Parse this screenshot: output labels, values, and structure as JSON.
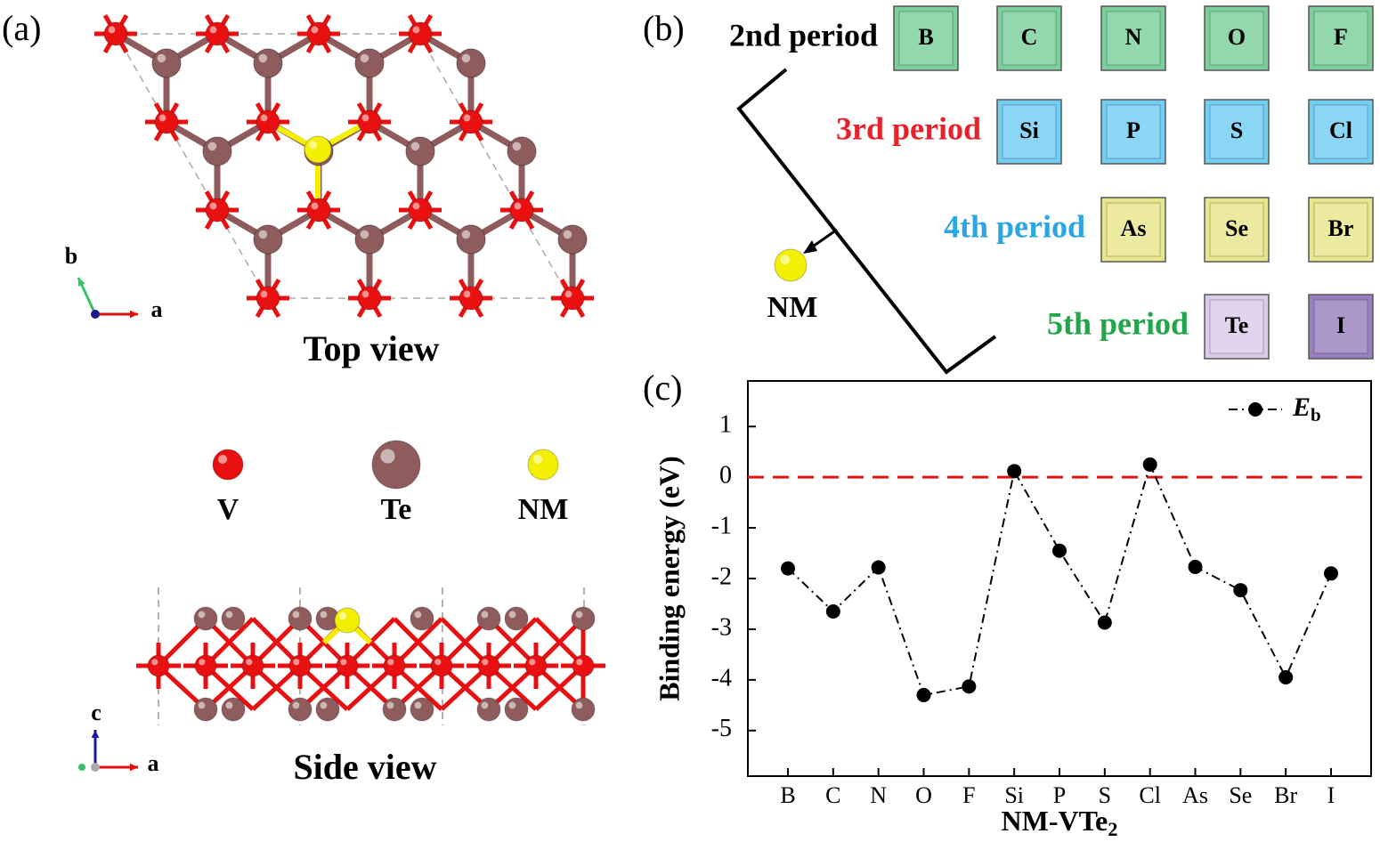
{
  "panel_labels": [
    "(a)",
    "(b)",
    "(c)"
  ],
  "structure": {
    "top_view": "Top view",
    "side_view": "Side view",
    "atoms": [
      {
        "name": "V",
        "color": "#e81010"
      },
      {
        "name": "Te",
        "color": "#8e5c5c"
      },
      {
        "name": "NM",
        "color": "#f2f000"
      }
    ],
    "top_axes": [
      "b",
      "a"
    ],
    "side_axes": [
      "c",
      "a"
    ]
  },
  "periods": [
    {
      "label": "2nd period",
      "color": "#000000",
      "elements": [
        {
          "symbol": "B",
          "color": "#7ccf9c"
        },
        {
          "symbol": "C",
          "color": "#7ccf9c"
        },
        {
          "symbol": "N",
          "color": "#7ccf9c"
        },
        {
          "symbol": "O",
          "color": "#7ccf9c"
        },
        {
          "symbol": "F",
          "color": "#7ccf9c"
        }
      ]
    },
    {
      "label": "3rd period",
      "color": "#e8202a",
      "elements": [
        {
          "symbol": "Si",
          "color": "#72cdf2"
        },
        {
          "symbol": "P",
          "color": "#72cdf2"
        },
        {
          "symbol": "S",
          "color": "#72cdf2"
        },
        {
          "symbol": "Cl",
          "color": "#72cdf2"
        }
      ]
    },
    {
      "label": "4th period",
      "color": "#2aa6e0",
      "elements": [
        {
          "symbol": "As",
          "color": "#e8e68c"
        },
        {
          "symbol": "Se",
          "color": "#e8e68c"
        },
        {
          "symbol": "Br",
          "color": "#e8e68c"
        }
      ]
    },
    {
      "label": "5th period",
      "color": "#22a64c",
      "elements": [
        {
          "symbol": "Te",
          "color": "#dccbe8"
        },
        {
          "symbol": "I",
          "color": "#9a80c0"
        }
      ]
    }
  ],
  "adsorbate": "NM",
  "chart_data": {
    "type": "line",
    "x_label": "NM-VTe2",
    "y_label": "Binding energy (eV)",
    "categories": [
      "B",
      "C",
      "N",
      "O",
      "F",
      "Si",
      "P",
      "S",
      "Cl",
      "As",
      "Se",
      "Br",
      "I"
    ],
    "series": [
      {
        "name": "Eb",
        "color": "#000000",
        "values": [
          -1.8,
          -2.65,
          -1.78,
          -4.3,
          -4.13,
          0.12,
          -1.45,
          -2.87,
          0.25,
          -1.77,
          -2.23,
          -3.95,
          -1.9
        ]
      }
    ],
    "ylim": [
      -5.9,
      1.9
    ],
    "yticks": [
      -5,
      -4,
      -3,
      -2,
      -1,
      0,
      1
    ],
    "reference_line": {
      "value": 0,
      "color": "#e81010"
    },
    "legend": "upper right",
    "grid": false
  }
}
